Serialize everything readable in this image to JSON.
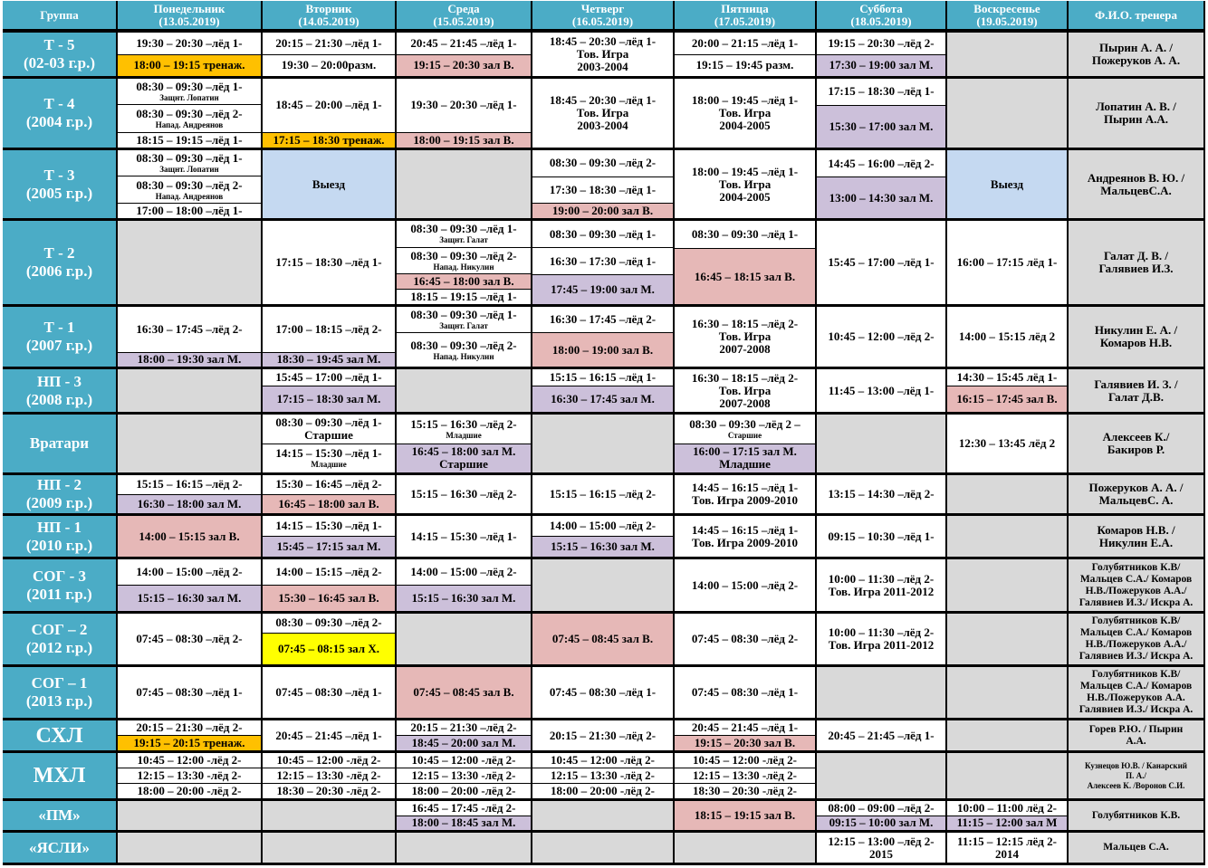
{
  "colors": {
    "w": "#ffffff",
    "g": "#d9d9d9",
    "o": "#ffc000",
    "p": "#e6b8b7",
    "m": "#ccc0da",
    "b": "#c5d9f1",
    "y": "#ffff00",
    "header": "#4bacc6"
  },
  "headers": [
    "Группа",
    "Понедельник\n(13.05.2019)",
    "Вторник\n(14.05.2019)",
    "Среда\n(15.05.2019)",
    "Четверг\n(16.05.2019)",
    "Пятница\n(17.05.2019)",
    "Суббота\n(18.05.2019)",
    "Воскресенье\n(19.05.2019)",
    "Ф.И.О. тренера"
  ],
  "rows": [
    {
      "name": "Т - 5",
      "years": "(02-03 г.р.)",
      "coach": "Пырин А. А. /\nПожеруков А. А.",
      "days": [
        [
          {
            "t": "19:30 – 20:30 –лёд 1-"
          },
          {
            "t": "18:00 – 19:15 тренаж.",
            "c": "o"
          }
        ],
        [
          {
            "t": "20:15 – 21:30 –лёд 1-"
          },
          {
            "t": "19:30 – 20:00разм."
          }
        ],
        [
          {
            "t": "20:45 – 21:45 –лёд 1-"
          },
          {
            "t": "19:15 – 20:30 зал В.",
            "c": "p"
          }
        ],
        [
          {
            "t": "18:45 – 20:30 –лёд 1-\nТов. Игра\n2003-2004"
          }
        ],
        [
          {
            "t": "20:00 – 21:15 –лёд 1-"
          },
          {
            "t": "19:15 – 19:45 разм."
          }
        ],
        [
          {
            "t": "19:15 – 20:30 –лёд 2-"
          },
          {
            "t": "17:30 – 19:00 зал М.",
            "c": "m"
          }
        ],
        [
          {
            "t": "",
            "c": "g"
          }
        ]
      ]
    },
    {
      "name": "Т - 4",
      "years": "(2004 г.р.)",
      "coach": "Лопатин А. В. /\nПырин А.А.",
      "days": [
        [
          {
            "t": "08:30 – 09:30 –лёд 1-",
            "s": "Защнт. Лопатин",
            "f": 1.8
          },
          {
            "t": "08:30 – 09:30 –лёд 2-",
            "s": "Напад. Андреянов",
            "f": 1.9
          },
          {
            "t": "18:15 – 19:15 –лёд 1-"
          }
        ],
        [
          {
            "t": "18:45 – 20:00 –лёд 1-",
            "f": 3.6
          },
          {
            "t": "17:15 – 18:30 тренаж.",
            "c": "o"
          }
        ],
        [
          {
            "t": "19:30 – 20:30 –лёд 1-",
            "f": 3.6
          },
          {
            "t": "18:00 – 19:15 зал В.",
            "c": "p"
          }
        ],
        [
          {
            "t": "18:45 – 20:30 –лёд 1-\nТов. Игра\n2003-2004"
          }
        ],
        [
          {
            "t": "18:00 – 19:45 –лёд 1-\nТов. Игра\n2004-2005"
          }
        ],
        [
          {
            "t": "17:15 – 18:30 –лёд 1-"
          },
          {
            "t": "15:30 – 17:00 зал М.",
            "c": "m",
            "f": 1.6
          }
        ],
        [
          {
            "t": "",
            "c": "g"
          }
        ]
      ]
    },
    {
      "name": "Т - 3",
      "years": "(2005 г.р.)",
      "coach": "Андреянов В. Ю. /\nМальцевС.А.",
      "days": [
        [
          {
            "t": "08:30 – 09:30 –лёд 1-",
            "s": "Защнт. Лопатин",
            "f": 1.8
          },
          {
            "t": "08:30 – 09:30 –лёд 2-",
            "s": "Напад. Андреянов",
            "f": 1.9
          },
          {
            "t": "17:00 – 18:00 –лёд 1-"
          }
        ],
        [
          {
            "t": "Выезд",
            "c": "b"
          }
        ],
        [
          {
            "t": "",
            "c": "g"
          }
        ],
        [
          {
            "t": "08:30 – 09:30 –лёд 2-",
            "f": 1.8
          },
          {
            "t": "17:30 – 18:30 –лёд 1-",
            "f": 1.8
          },
          {
            "t": "19:00 – 20:00 зал В.",
            "c": "p"
          }
        ],
        [
          {
            "t": "18:00 – 19:45 –лёд 1-\nТов. Игра\n2004-2005"
          }
        ],
        [
          {
            "t": "14:45 – 16:00 –лёд 2-",
            "f": 1.3
          },
          {
            "t": "13:00 – 14:30 зал М.",
            "c": "m",
            "f": 2
          }
        ],
        [
          {
            "t": "Выезд",
            "c": "b"
          }
        ]
      ]
    },
    {
      "name": "Т - 2",
      "years": "(2006 г.р.)",
      "coach": "Галат Д. В. /\nГалявиев И.З.",
      "days": [
        [
          {
            "t": "",
            "c": "g"
          }
        ],
        [
          {
            "t": "17:15 – 18:30 –лёд 1-"
          }
        ],
        [
          {
            "t": "08:30 – 09:30 –лёд 1-",
            "s": "Защнт. Галат",
            "f": 1.8
          },
          {
            "t": "08:30 – 09:30 –лёд 2-",
            "s": "Напад. Никулин",
            "f": 1.8
          },
          {
            "t": "16:45 – 18:00 зал В.",
            "c": "p"
          },
          {
            "t": "18:15 – 19:15 –лёд 1-"
          }
        ],
        [
          {
            "t": "08:30 – 09:30 –лёд 1-"
          },
          {
            "t": "16:30 – 17:30 –лёд 1-"
          },
          {
            "t": "17:45 – 19:00 зал М.",
            "c": "m",
            "f": 1.1
          }
        ],
        [
          {
            "t": "08:30 – 09:30 –лёд 1-"
          },
          {
            "t": "16:45 – 18:15 зал В.",
            "c": "p",
            "f": 2
          }
        ],
        [
          {
            "t": "15:45 – 17:00 –лёд 1-"
          }
        ],
        [
          {
            "t": "16:00 – 17:15 лёд 1-"
          }
        ]
      ]
    },
    {
      "name": "Т - 1",
      "years": "(2007 г.р.)",
      "coach": "Никулин Е. А. /\nКомаров Н.В.",
      "days": [
        [
          {
            "t": "16:30 – 17:45 –лёд 2-",
            "f": 3.2
          },
          {
            "t": "18:00 – 19:30 зал М.",
            "c": "m"
          }
        ],
        [
          {
            "t": "17:00 – 18:15 –лёд 2-",
            "f": 3.2
          },
          {
            "t": "18:30 – 19:45 зал М.",
            "c": "m"
          }
        ],
        [
          {
            "t": "08:30 – 09:30 –лёд 1-",
            "s": "Защнт. Галат"
          },
          {
            "t": "08:30 – 09:30 –лёд 2-",
            "s": "Напад. Никулин",
            "f": 1.3
          }
        ],
        [
          {
            "t": "16:30 – 17:45 –лёд 2-"
          },
          {
            "t": "18:00 – 19:00 зал В.",
            "c": "p",
            "f": 1.3
          }
        ],
        [
          {
            "t": "16:30 – 18:15 –лёд 2-\nТов. Игра\n2007-2008"
          }
        ],
        [
          {
            "t": "10:45 – 12:00 –лёд 2-"
          }
        ],
        [
          {
            "t": "14:00 – 15:15 лёд 2"
          }
        ]
      ]
    },
    {
      "name": "НП - 3",
      "years": "(2008 г.р.)",
      "coach": "Галявиев И. З. /\nГалат Д.В.",
      "days": [
        [
          {
            "t": "",
            "c": "g"
          }
        ],
        [
          {
            "t": "15:45 – 17:00 –лёд 1-",
            "f": 0.8
          },
          {
            "t": "17:15 – 18:30 зал М.",
            "c": "m",
            "f": 1.2
          }
        ],
        [
          {
            "t": "",
            "c": "g"
          }
        ],
        [
          {
            "t": "15:15 – 16:15 –лёд 1-",
            "f": 0.8
          },
          {
            "t": "16:30 – 17:45 зал М.",
            "c": "m",
            "f": 1.2
          }
        ],
        [
          {
            "t": "16:30 – 18:15 –лёд 2-\nТов. Игра\n2007-2008"
          }
        ],
        [
          {
            "t": "11:45 – 13:00 –лёд 1-"
          }
        ],
        [
          {
            "t": "14:30 – 15:45 лёд 1-",
            "f": 0.8
          },
          {
            "t": "16:15 – 17:45 зал В.",
            "c": "p",
            "f": 1.2
          }
        ]
      ]
    },
    {
      "name": "Вратари",
      "years": "",
      "coach": "Алексеев К./\nБакиров Р.",
      "days": [
        [
          {
            "t": "",
            "c": "g"
          }
        ],
        [
          {
            "t": "08:30 – 09:30 –лёд 1-\nСтаршие"
          },
          {
            "t": "14:15 – 15:30 –лёд 1-",
            "s": "Младшие"
          }
        ],
        [
          {
            "t": "15:15 – 16:30 –лёд 2-",
            "s": "Младшие"
          },
          {
            "t": "16:45 – 18:00 зал М.\nСтаршие",
            "c": "m"
          }
        ],
        [
          {
            "t": "",
            "c": "g"
          }
        ],
        [
          {
            "t": "08:30 – 09:30 –лёд 2 –",
            "s": "Старшие"
          },
          {
            "t": "16:00 – 17:15 зал М.\nМладшие",
            "c": "m"
          }
        ],
        [
          {
            "t": "",
            "c": "g"
          }
        ],
        [
          {
            "t": "12:30 – 13:45 лёд 2"
          }
        ]
      ]
    },
    {
      "name": "НП - 2",
      "years": "(2009 г.р.)",
      "coach": "Пожеруков А. А. /\nМальцевС. А.",
      "days": [
        [
          {
            "t": "15:15 – 16:15 –лёд 2-"
          },
          {
            "t": "16:30 – 18:00 зал М.",
            "c": "m"
          }
        ],
        [
          {
            "t": "15:30 – 16:45 –лёд 2-"
          },
          {
            "t": "16:45 – 18:00 зал В.",
            "c": "p"
          }
        ],
        [
          {
            "t": "15:15 – 16:30 –лёд 2-"
          }
        ],
        [
          {
            "t": "15:15 – 16:15 –лёд 2-"
          }
        ],
        [
          {
            "t": "14:45 – 16:15 –лёд 1-\nТов. Игра 2009-2010"
          }
        ],
        [
          {
            "t": "13:15 – 14:30 –лёд 2-"
          }
        ],
        [
          {
            "t": "",
            "c": "g"
          }
        ]
      ]
    },
    {
      "name": "НП - 1",
      "years": "(2010 г.р.)",
      "coach": "Комаров Н.В. /\nНикулин Е.А.",
      "days": [
        [
          {
            "t": "14:00 – 15:15 зал В.",
            "c": "p"
          }
        ],
        [
          {
            "t": "14:15 – 15:30 –лёд 1-"
          },
          {
            "t": "15:45 – 17:15 зал М.",
            "c": "m"
          }
        ],
        [
          {
            "t": "14:15 – 15:30 –лёд 1-"
          }
        ],
        [
          {
            "t": "14:00 – 15:00 –лёд 2-"
          },
          {
            "t": "15:15 – 16:30 зал М.",
            "c": "m"
          }
        ],
        [
          {
            "t": "14:45 – 16:15 –лёд 1-\nТов. Игра 2009-2010"
          }
        ],
        [
          {
            "t": "09:15 – 10:30 –лёд 1-"
          }
        ],
        [
          {
            "t": "",
            "c": "g"
          }
        ]
      ]
    },
    {
      "name": "СОГ - 3",
      "years": "(2011 г.р.)",
      "coach": "Голубятников К.В/\nМальцев С.А./ Комаров\nН.В./Пожеруков А.А./\nГалявиев И.З./ Искра А.",
      "coach_size": "small",
      "days": [
        [
          {
            "t": "14:00 – 15:00 –лёд 2-"
          },
          {
            "t": "15:15 – 16:30 зал М.",
            "c": "m"
          }
        ],
        [
          {
            "t": "14:00 – 15:15 –лёд 2-"
          },
          {
            "t": "15:30 – 16:45 зал В.",
            "c": "p"
          }
        ],
        [
          {
            "t": "14:00 – 15:00 –лёд 2-"
          },
          {
            "t": "15:15 – 16:30 зал М.",
            "c": "m"
          }
        ],
        [
          {
            "t": "",
            "c": "g"
          }
        ],
        [
          {
            "t": "14:00 – 15:00 –лёд 2-"
          }
        ],
        [
          {
            "t": "10:00 – 11:30 –лёд 2-\nТов. Игра 2011-2012"
          }
        ],
        [
          {
            "t": "",
            "c": "g"
          }
        ]
      ]
    },
    {
      "name": "СОГ – 2",
      "years": "(2012 г.р.)",
      "coach": "Голубятников К.В/\nМальцев С.А./ Комаров\nН.В./Пожеруков А.А./\nГалявиев И.З./ Искра А.",
      "coach_size": "small",
      "days": [
        [
          {
            "t": "07:45 – 08:30 –лёд 2-"
          }
        ],
        [
          {
            "t": "08:30 – 09:30 –лёд 2-",
            "f": 0.6
          },
          {
            "t": "07:45 – 08:15 зал Х.",
            "c": "y"
          }
        ],
        [
          {
            "t": "",
            "c": "g"
          }
        ],
        [
          {
            "t": "07:45 – 08:45 зал В.",
            "c": "p"
          }
        ],
        [
          {
            "t": "07:45 – 08:30 –лёд 2-"
          }
        ],
        [
          {
            "t": "10:00 – 11:30 –лёд 2-\nТов. Игра 2011-2012"
          }
        ],
        [
          {
            "t": "",
            "c": "g"
          }
        ]
      ]
    },
    {
      "name": "СОГ – 1",
      "years": "(2013 г.р.)",
      "coach": "Голубятников К.В/\nМальцев С.А./ Комаров\nН.В./Пожеруков А.А.\nГалявиев И.З./ Искра А.",
      "coach_size": "small",
      "days": [
        [
          {
            "t": "07:45 – 08:30 –лёд 1-"
          }
        ],
        [
          {
            "t": "07:45 – 08:30 –лёд 1-"
          }
        ],
        [
          {
            "t": "07:45 – 08:45 зал В.",
            "c": "p"
          }
        ],
        [
          {
            "t": "07:45 – 08:30 –лёд 1-"
          }
        ],
        [
          {
            "t": "07:45 – 08:30 –лёд 1-"
          }
        ],
        [
          {
            "t": "",
            "c": "g"
          }
        ],
        [
          {
            "t": "",
            "c": "g"
          }
        ]
      ]
    },
    {
      "name": "СХЛ",
      "years": "",
      "big": true,
      "coach": "Горев Р.Ю. / Пырин\nА.А.",
      "coach_size": "small",
      "days": [
        [
          {
            "t": "20:15 – 21:30 –лёд 2-"
          },
          {
            "t": "19:15 – 20:15 тренаж.",
            "c": "o"
          }
        ],
        [
          {
            "t": "20:45 – 21:45 –лёд 1-"
          }
        ],
        [
          {
            "t": "20:15 – 21:30 –лёд 2-"
          },
          {
            "t": "18:45 – 20:00 зал М.",
            "c": "m"
          }
        ],
        [
          {
            "t": "20:15 – 21:30 –лёд 2-"
          }
        ],
        [
          {
            "t": "20:45 – 21:45 –лёд 1-"
          },
          {
            "t": "19:15 – 20:30 зал В.",
            "c": "p"
          }
        ],
        [
          {
            "t": "20:45 – 21:45 –лёд 1-"
          }
        ],
        [
          {
            "t": "",
            "c": "g"
          }
        ]
      ]
    },
    {
      "name": "МХЛ",
      "years": "",
      "big": true,
      "coach": "Кузнецов Ю.В. / Канарский\nП. А./\nАлексеев К. /Воронов С.И.",
      "coach_size": "tiny",
      "days": [
        [
          {
            "t": "10:45 – 12:00 -лёд 2-"
          },
          {
            "t": "12:15 – 13:30 -лёд 2-"
          },
          {
            "t": "18:00 – 20:00 -лёд 2-"
          }
        ],
        [
          {
            "t": "10:45 – 12:00 -лёд 2-"
          },
          {
            "t": "12:15 – 13:30 -лёд 2-"
          },
          {
            "t": "18:30 – 20:30 -лёд 2-"
          }
        ],
        [
          {
            "t": "10:45 – 12:00 -лёд 2-"
          },
          {
            "t": "12:15 – 13:30 -лёд 2-"
          },
          {
            "t": "18:00 – 20:00 -лёд 2-"
          }
        ],
        [
          {
            "t": "10:45 – 12:00 -лёд 2-"
          },
          {
            "t": "12:15 – 13:30 -лёд 2-"
          },
          {
            "t": "18:00 – 20:00 -лёд 2-"
          }
        ],
        [
          {
            "t": "10:45 – 12:00 -лёд 2-"
          },
          {
            "t": "12:15 – 13:30 -лёд 2-"
          },
          {
            "t": "18:30 – 20:30 -лёд 2-"
          }
        ],
        [
          {
            "t": "",
            "c": "g"
          }
        ],
        [
          {
            "t": "",
            "c": "g"
          }
        ]
      ]
    },
    {
      "name": "«ПМ»",
      "years": "",
      "coach": "Голубятников К.В.",
      "coach_size": "small",
      "days": [
        [
          {
            "t": "",
            "c": "g"
          }
        ],
        [
          {
            "t": "",
            "c": "g"
          }
        ],
        [
          {
            "t": "16:45 – 17:45 -лёд 2-"
          },
          {
            "t": "18:00 – 18:45 зал М.",
            "c": "m"
          }
        ],
        [
          {
            "t": "",
            "c": "g"
          }
        ],
        [
          {
            "t": "18:15 – 19:15 зал В.",
            "c": "p"
          }
        ],
        [
          {
            "t": "08:00 – 09:00 –лёд 2-"
          },
          {
            "t": "09:15 – 10:00 зал М.",
            "c": "m"
          }
        ],
        [
          {
            "t": "10:00 – 11:00 лёд 2-"
          },
          {
            "t": "11:15 – 12:00 зал М",
            "c": "m"
          }
        ]
      ]
    },
    {
      "name": "«ЯСЛИ»",
      "years": "",
      "coach": "Мальцев С.А.",
      "coach_size": "small",
      "days": [
        [
          {
            "t": "",
            "c": "g"
          }
        ],
        [
          {
            "t": "",
            "c": "g"
          }
        ],
        [
          {
            "t": "",
            "c": "g"
          }
        ],
        [
          {
            "t": "",
            "c": "g"
          }
        ],
        [
          {
            "t": "",
            "c": "g"
          }
        ],
        [
          {
            "t": "12:15 – 13:00 –лёд 2-\n2015"
          }
        ],
        [
          {
            "t": "11:15 – 12:15 лёд 2-\n2014"
          }
        ]
      ]
    }
  ]
}
